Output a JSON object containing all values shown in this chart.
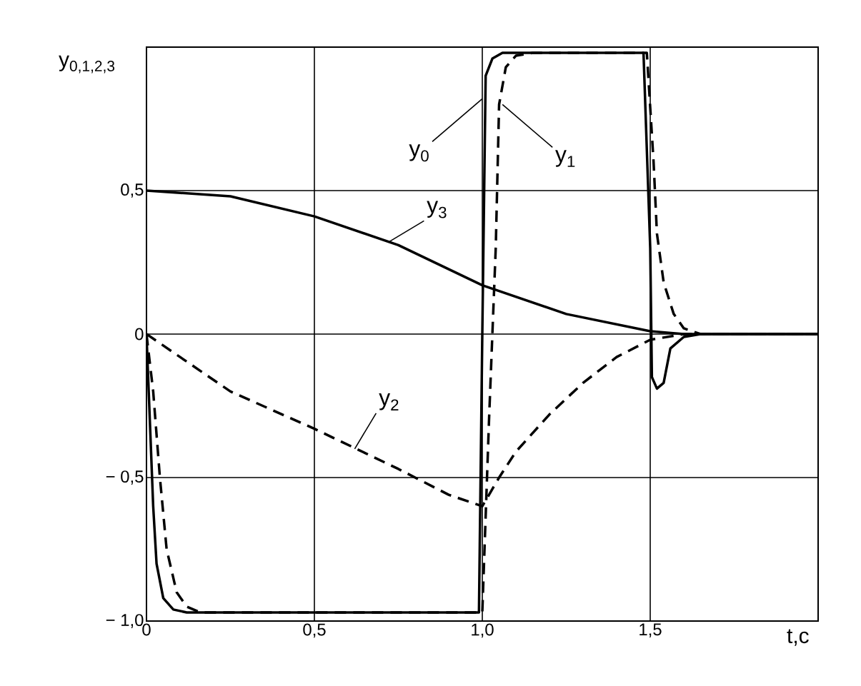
{
  "chart_data": {
    "type": "line",
    "xlabel": "t,c",
    "ylabel": "y$_{0,1,2,3}$",
    "xlim": [
      0,
      2
    ],
    "ylim": [
      -1,
      1
    ],
    "xticks": [
      {
        "value": 0,
        "label": "0"
      },
      {
        "value": 0.5,
        "label": "0,5"
      },
      {
        "value": 1,
        "label": "1,0"
      },
      {
        "value": 1.5,
        "label": "1,5"
      }
    ],
    "yticks": [
      {
        "value": -1,
        "label": "− 1,0"
      },
      {
        "value": -0.5,
        "label": "− 0,5"
      },
      {
        "value": 0,
        "label": "0"
      },
      {
        "value": 0.5,
        "label": "0,5"
      }
    ],
    "grid": true,
    "marker": "none",
    "series": [
      {
        "color": "#000000",
        "line_style": "solid",
        "x": [
          0,
          0.01,
          0.02,
          0.03,
          0.05,
          0.08,
          0.12,
          0.99,
          1.0,
          1.01,
          1.03,
          1.06,
          1.48,
          1.5,
          1.505,
          1.52,
          1.54,
          1.56,
          1.6,
          1.65,
          2
        ],
        "values": [
          0,
          -0.3,
          -0.6,
          -0.8,
          -0.92,
          -0.96,
          -0.97,
          -0.97,
          0,
          0.9,
          0.96,
          0.98,
          0.98,
          0.3,
          -0.15,
          -0.19,
          -0.17,
          -0.05,
          -0.01,
          0,
          0
        ]
      },
      {
        "color": "#000000",
        "line_style": "dashed",
        "x": [
          0,
          0.02,
          0.04,
          0.06,
          0.09,
          0.12,
          0.16,
          1.0,
          1.02,
          1.04,
          1.05,
          1.07,
          1.1,
          1.15,
          1.49,
          1.51,
          1.52,
          1.54,
          1.57,
          1.6,
          1.65,
          2
        ],
        "values": [
          0,
          -0.2,
          -0.5,
          -0.75,
          -0.9,
          -0.95,
          -0.97,
          -0.97,
          -0.3,
          0.3,
          0.8,
          0.93,
          0.97,
          0.98,
          0.98,
          0.6,
          0.35,
          0.18,
          0.07,
          0.02,
          0,
          0
        ]
      },
      {
        "color": "#000000",
        "line_style": "dashed",
        "x": [
          0,
          0.1,
          0.25,
          0.5,
          0.75,
          0.9,
          1.0,
          1.05,
          1.1,
          1.2,
          1.3,
          1.4,
          1.5,
          1.55,
          1.6,
          2
        ],
        "values": [
          0,
          -0.08,
          -0.2,
          -0.33,
          -0.47,
          -0.56,
          -0.6,
          -0.5,
          -0.41,
          -0.28,
          -0.17,
          -0.08,
          -0.02,
          -0.01,
          0,
          0
        ]
      },
      {
        "color": "#000000",
        "line_style": "solid",
        "x": [
          0,
          0.25,
          0.5,
          0.75,
          1.0,
          1.25,
          1.5,
          1.6,
          2
        ],
        "values": [
          0.5,
          0.48,
          0.41,
          0.31,
          0.17,
          0.07,
          0.01,
          0,
          0
        ]
      }
    ],
    "annotations": [
      {
        "text": "y$_{0}$",
        "x": 1.0,
        "y": 0.82
      },
      {
        "text": "y$_{1}$",
        "x": 1.06,
        "y": 0.8
      },
      {
        "text": "y$_{2}$",
        "x": 0.62,
        "y": -0.4
      },
      {
        "text": "y$_{3}$",
        "x": 0.72,
        "y": 0.32
      }
    ]
  }
}
